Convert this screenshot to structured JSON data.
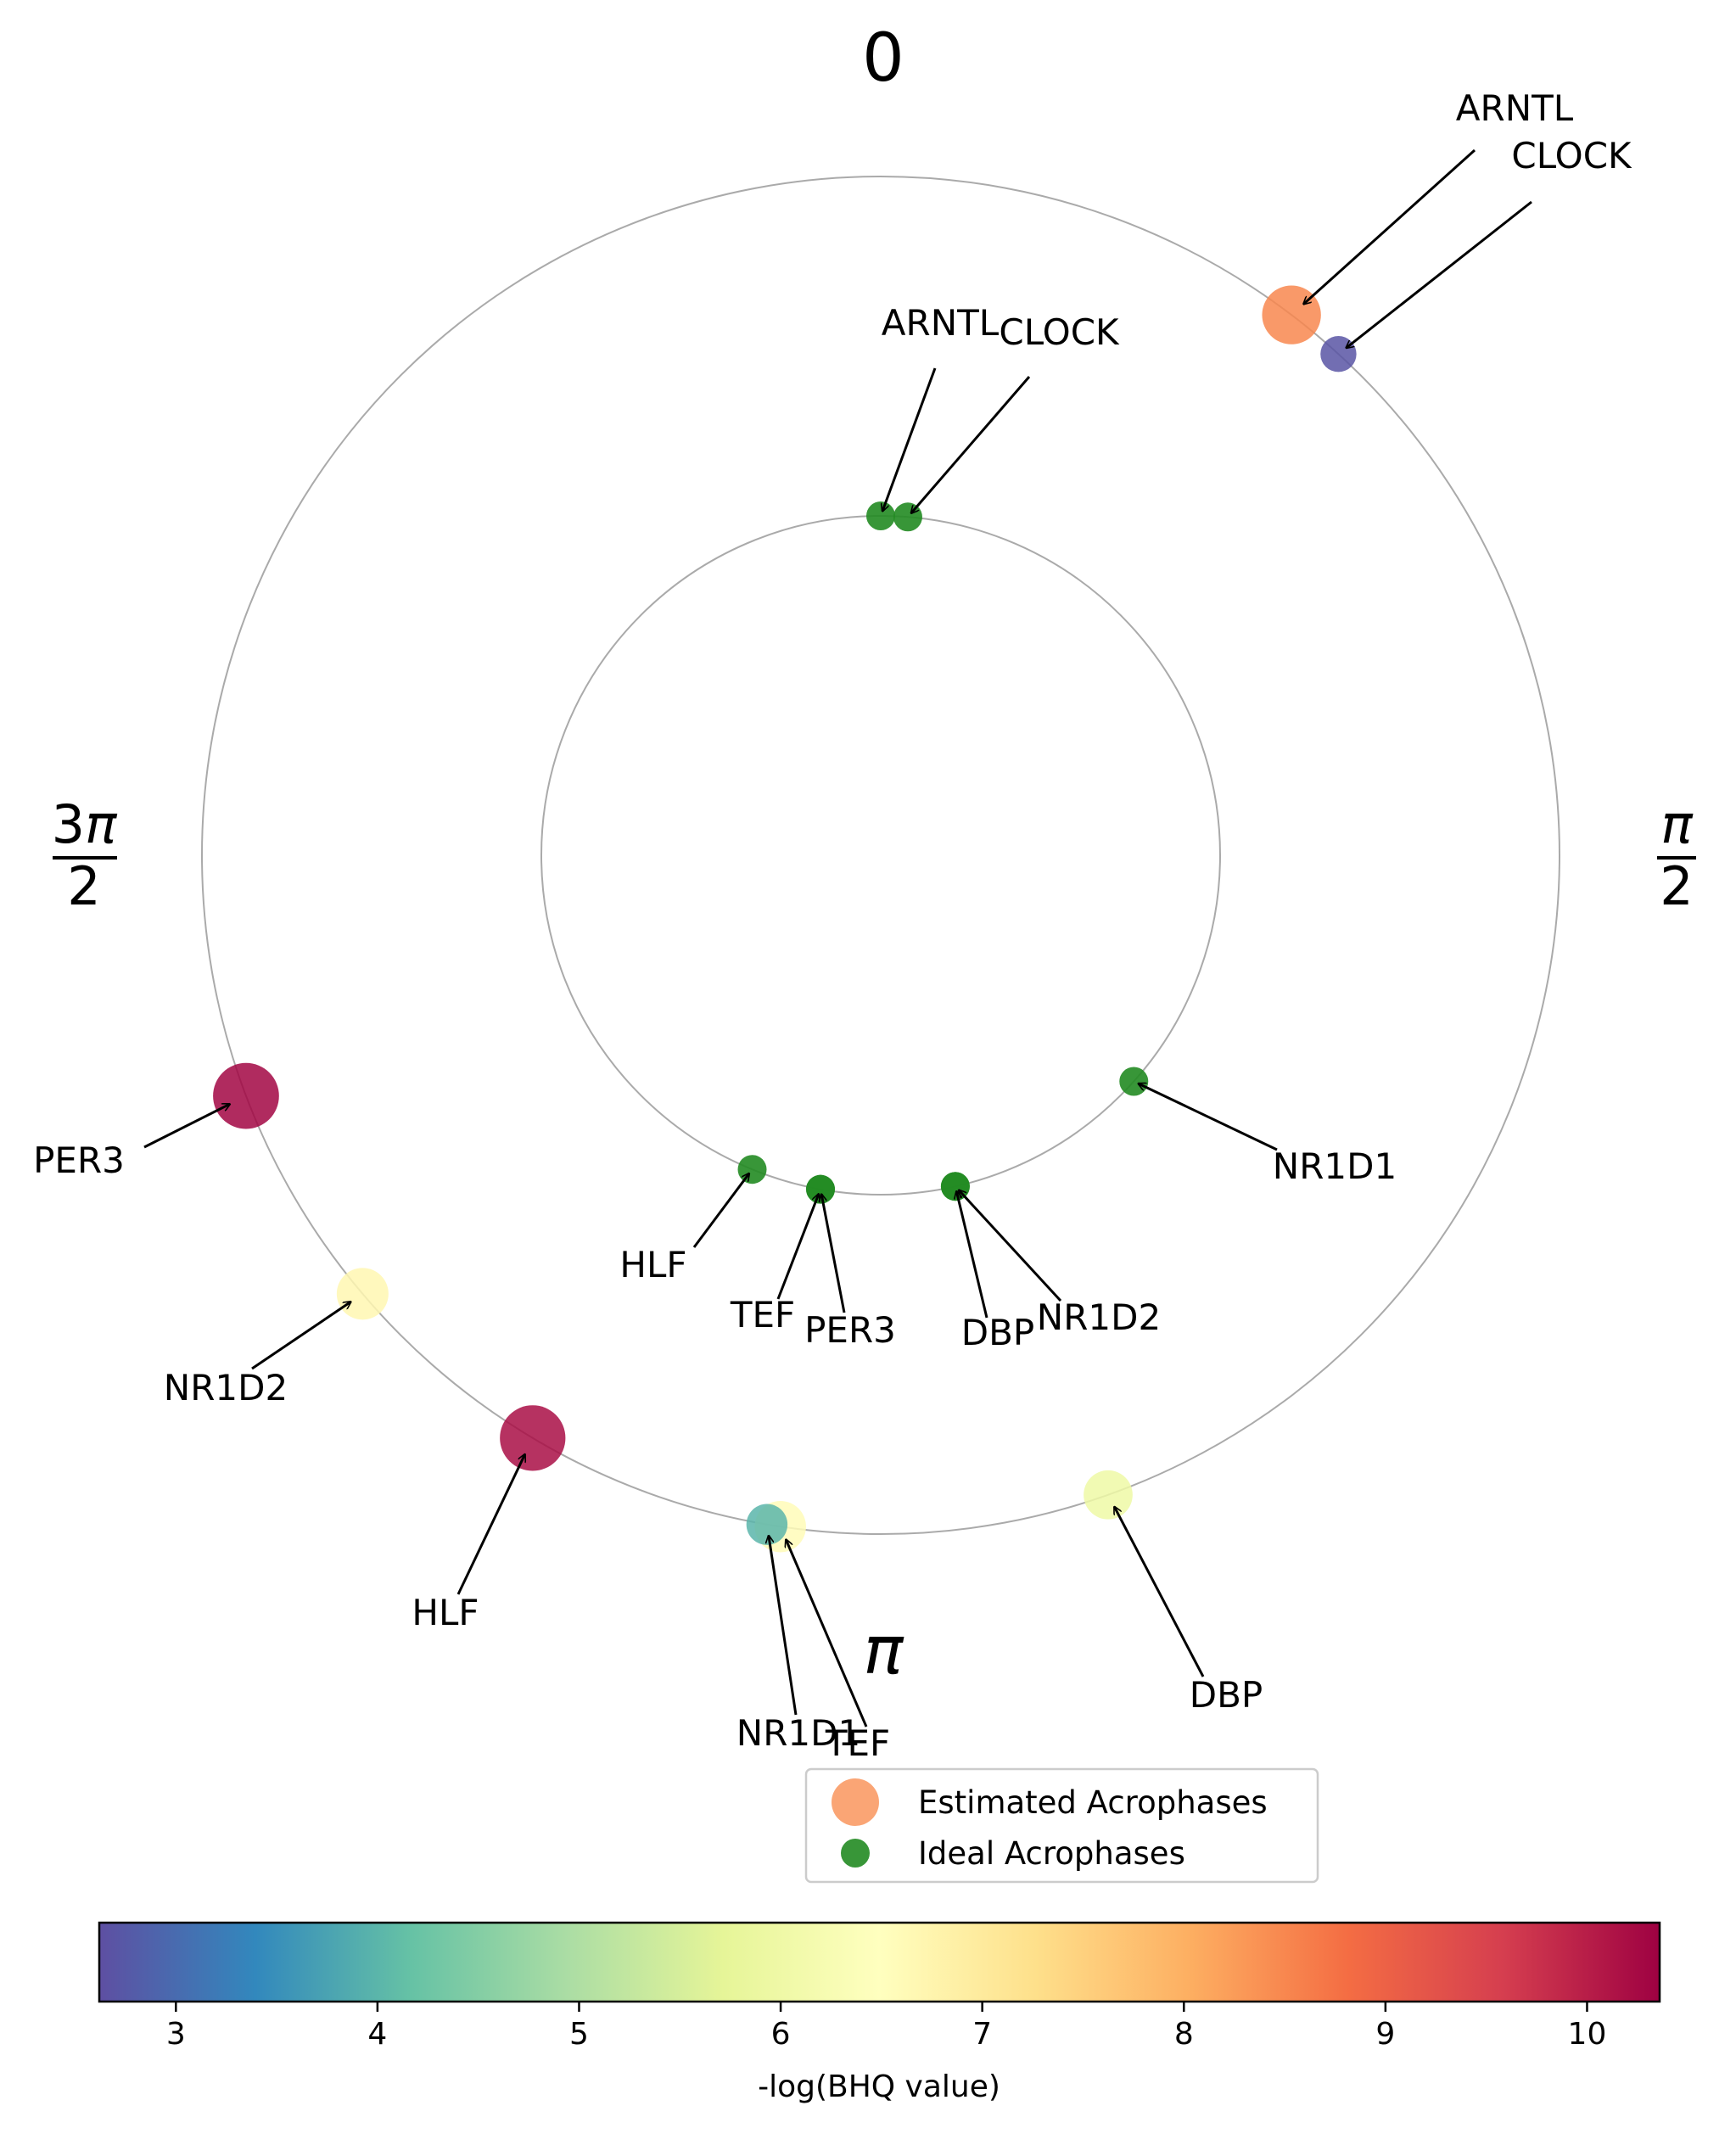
{
  "chart_data": {
    "type": "scatter",
    "subtype": "polar",
    "theta_tick_labels": {
      "top": "0",
      "right": "π/2",
      "bottom": "π",
      "left": "3π/2"
    },
    "direction": "clockwise",
    "zero_location": "top",
    "grid_circles": [
      0.5,
      1.0
    ],
    "series": [
      {
        "name": "Estimated Acrophases",
        "radius": 1.0,
        "marker_size": "proportional to -log(BHQ value)",
        "color_by": "-log(BHQ value)",
        "points": [
          {
            "gene": "ARNTL",
            "theta": 0.65,
            "value": 8.5
          },
          {
            "gene": "CLOCK",
            "theta": 0.74,
            "value": 2.7
          },
          {
            "gene": "DBP",
            "theta": 2.8,
            "value": 6.0
          },
          {
            "gene": "TEF",
            "theta": 3.29,
            "value": 6.6
          },
          {
            "gene": "NR1D1",
            "theta": 3.31,
            "value": 4.0
          },
          {
            "gene": "HLF",
            "theta": 3.68,
            "value": 10.2
          },
          {
            "gene": "NR1D2",
            "theta": 4.01,
            "value": 6.7
          },
          {
            "gene": "PER3",
            "theta": 4.35,
            "value": 10.3
          }
        ]
      },
      {
        "name": "Ideal Acrophases",
        "radius": 0.5,
        "color": "#228B22",
        "points": [
          {
            "gene": "ARNTL",
            "theta": 0.0
          },
          {
            "gene": "CLOCK",
            "theta": 0.08
          },
          {
            "gene": "NR1D1",
            "theta": 2.3
          },
          {
            "gene": "DBP",
            "theta": 2.92
          },
          {
            "gene": "NR1D2",
            "theta": 2.92
          },
          {
            "gene": "PER3",
            "theta": 3.32
          },
          {
            "gene": "TEF",
            "theta": 3.32
          },
          {
            "gene": "HLF",
            "theta": 3.53
          }
        ]
      }
    ],
    "legend": {
      "position": "bottom-center",
      "entries": [
        "Estimated Acrophases",
        "Ideal Acrophases"
      ]
    },
    "colorbar": {
      "label": "-log(BHQ value)",
      "colormap": "Spectral_r",
      "range": [
        2.62,
        10.36
      ],
      "ticks": [
        3,
        4,
        5,
        6,
        7,
        8,
        9,
        10
      ],
      "orientation": "horizontal"
    },
    "grid": false
  },
  "colors": {
    "ideal": "#228B22",
    "grid": "#aaaaaa",
    "colormap_stops": [
      "#5e4fa2",
      "#3288bd",
      "#66c2a5",
      "#abdda4",
      "#e6f598",
      "#ffffbf",
      "#fee08b",
      "#fdae61",
      "#f46d43",
      "#d53e4f",
      "#9e0142"
    ]
  }
}
